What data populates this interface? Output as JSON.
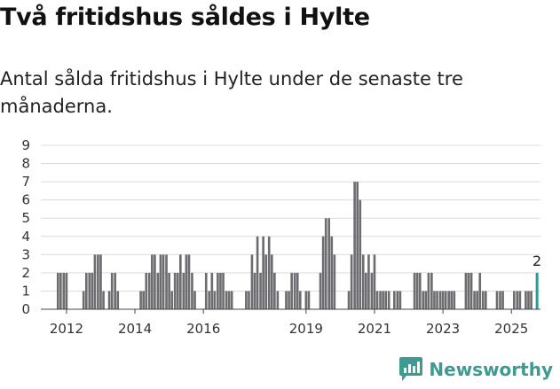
{
  "header": {
    "title": "Två fritidshus såldes i Hylte",
    "subtitle": "Antal sålda fritidshus i Hylte under de senaste tre månaderna."
  },
  "brand": {
    "name": "Newsworthy"
  },
  "colors": {
    "bar": "#6d6c70",
    "highlight": "#2e9a93",
    "grid": "#dcdcdc",
    "brand": "#3f9a92"
  },
  "chart_data": {
    "type": "bar",
    "ylim": [
      0,
      9
    ],
    "yticks": [
      0,
      1,
      2,
      3,
      4,
      5,
      6,
      7,
      8,
      9
    ],
    "xticks": [
      {
        "label": "2012",
        "at": 2012.0
      },
      {
        "label": "2014",
        "at": 2014.0
      },
      {
        "label": "2016",
        "at": 2016.0
      },
      {
        "label": "2019",
        "at": 2019.0
      },
      {
        "label": "2021",
        "at": 2021.0
      },
      {
        "label": "2023",
        "at": 2023.0
      },
      {
        "label": "2025",
        "at": 2025.0
      }
    ],
    "x_range": [
      2011.25,
      2025.85
    ],
    "grid": true,
    "series": [
      {
        "values": [
          {
            "x": 2011.75,
            "y": 2
          },
          {
            "x": 2011.83,
            "y": 2
          },
          {
            "x": 2011.92,
            "y": 2
          },
          {
            "x": 2012.0,
            "y": 2
          },
          {
            "x": 2012.5,
            "y": 1
          },
          {
            "x": 2012.58,
            "y": 2
          },
          {
            "x": 2012.67,
            "y": 2
          },
          {
            "x": 2012.75,
            "y": 2
          },
          {
            "x": 2012.83,
            "y": 3
          },
          {
            "x": 2012.92,
            "y": 3
          },
          {
            "x": 2013.0,
            "y": 3
          },
          {
            "x": 2013.08,
            "y": 1
          },
          {
            "x": 2013.25,
            "y": 1
          },
          {
            "x": 2013.33,
            "y": 2
          },
          {
            "x": 2013.42,
            "y": 2
          },
          {
            "x": 2013.5,
            "y": 1
          },
          {
            "x": 2014.17,
            "y": 1
          },
          {
            "x": 2014.25,
            "y": 1
          },
          {
            "x": 2014.33,
            "y": 2
          },
          {
            "x": 2014.42,
            "y": 2
          },
          {
            "x": 2014.5,
            "y": 3
          },
          {
            "x": 2014.58,
            "y": 3
          },
          {
            "x": 2014.67,
            "y": 2
          },
          {
            "x": 2014.75,
            "y": 3
          },
          {
            "x": 2014.83,
            "y": 3
          },
          {
            "x": 2014.92,
            "y": 3
          },
          {
            "x": 2015.0,
            "y": 2
          },
          {
            "x": 2015.08,
            "y": 1
          },
          {
            "x": 2015.17,
            "y": 2
          },
          {
            "x": 2015.25,
            "y": 2
          },
          {
            "x": 2015.33,
            "y": 3
          },
          {
            "x": 2015.42,
            "y": 2
          },
          {
            "x": 2015.5,
            "y": 3
          },
          {
            "x": 2015.58,
            "y": 3
          },
          {
            "x": 2015.67,
            "y": 2
          },
          {
            "x": 2015.75,
            "y": 1
          },
          {
            "x": 2016.08,
            "y": 2
          },
          {
            "x": 2016.17,
            "y": 1
          },
          {
            "x": 2016.25,
            "y": 2
          },
          {
            "x": 2016.33,
            "y": 1
          },
          {
            "x": 2016.42,
            "y": 2
          },
          {
            "x": 2016.5,
            "y": 2
          },
          {
            "x": 2016.58,
            "y": 2
          },
          {
            "x": 2016.67,
            "y": 1
          },
          {
            "x": 2016.75,
            "y": 1
          },
          {
            "x": 2016.83,
            "y": 1
          },
          {
            "x": 2017.25,
            "y": 1
          },
          {
            "x": 2017.33,
            "y": 1
          },
          {
            "x": 2017.42,
            "y": 3
          },
          {
            "x": 2017.5,
            "y": 2
          },
          {
            "x": 2017.58,
            "y": 4
          },
          {
            "x": 2017.67,
            "y": 2
          },
          {
            "x": 2017.75,
            "y": 4
          },
          {
            "x": 2017.83,
            "y": 3
          },
          {
            "x": 2017.92,
            "y": 4
          },
          {
            "x": 2018.0,
            "y": 3
          },
          {
            "x": 2018.08,
            "y": 2
          },
          {
            "x": 2018.17,
            "y": 1
          },
          {
            "x": 2018.42,
            "y": 1
          },
          {
            "x": 2018.5,
            "y": 1
          },
          {
            "x": 2018.58,
            "y": 2
          },
          {
            "x": 2018.67,
            "y": 2
          },
          {
            "x": 2018.75,
            "y": 2
          },
          {
            "x": 2018.83,
            "y": 1
          },
          {
            "x": 2019.0,
            "y": 1
          },
          {
            "x": 2019.08,
            "y": 1
          },
          {
            "x": 2019.42,
            "y": 2
          },
          {
            "x": 2019.5,
            "y": 4
          },
          {
            "x": 2019.58,
            "y": 5
          },
          {
            "x": 2019.67,
            "y": 5
          },
          {
            "x": 2019.75,
            "y": 4
          },
          {
            "x": 2019.83,
            "y": 3
          },
          {
            "x": 2020.25,
            "y": 1
          },
          {
            "x": 2020.33,
            "y": 3
          },
          {
            "x": 2020.42,
            "y": 7
          },
          {
            "x": 2020.5,
            "y": 7
          },
          {
            "x": 2020.58,
            "y": 6
          },
          {
            "x": 2020.67,
            "y": 3
          },
          {
            "x": 2020.75,
            "y": 2
          },
          {
            "x": 2020.83,
            "y": 3
          },
          {
            "x": 2020.92,
            "y": 2
          },
          {
            "x": 2021.0,
            "y": 3
          },
          {
            "x": 2021.08,
            "y": 1
          },
          {
            "x": 2021.17,
            "y": 1
          },
          {
            "x": 2021.25,
            "y": 1
          },
          {
            "x": 2021.33,
            "y": 1
          },
          {
            "x": 2021.42,
            "y": 1
          },
          {
            "x": 2021.58,
            "y": 1
          },
          {
            "x": 2021.67,
            "y": 1
          },
          {
            "x": 2021.75,
            "y": 1
          },
          {
            "x": 2022.17,
            "y": 2
          },
          {
            "x": 2022.25,
            "y": 2
          },
          {
            "x": 2022.33,
            "y": 2
          },
          {
            "x": 2022.42,
            "y": 1
          },
          {
            "x": 2022.5,
            "y": 1
          },
          {
            "x": 2022.58,
            "y": 2
          },
          {
            "x": 2022.67,
            "y": 2
          },
          {
            "x": 2022.75,
            "y": 1
          },
          {
            "x": 2022.83,
            "y": 1
          },
          {
            "x": 2022.92,
            "y": 1
          },
          {
            "x": 2023.0,
            "y": 1
          },
          {
            "x": 2023.08,
            "y": 1
          },
          {
            "x": 2023.17,
            "y": 1
          },
          {
            "x": 2023.25,
            "y": 1
          },
          {
            "x": 2023.33,
            "y": 1
          },
          {
            "x": 2023.67,
            "y": 2
          },
          {
            "x": 2023.75,
            "y": 2
          },
          {
            "x": 2023.83,
            "y": 2
          },
          {
            "x": 2023.92,
            "y": 1
          },
          {
            "x": 2024.0,
            "y": 1
          },
          {
            "x": 2024.08,
            "y": 2
          },
          {
            "x": 2024.17,
            "y": 1
          },
          {
            "x": 2024.25,
            "y": 1
          },
          {
            "x": 2024.58,
            "y": 1
          },
          {
            "x": 2024.67,
            "y": 1
          },
          {
            "x": 2024.75,
            "y": 1
          },
          {
            "x": 2025.08,
            "y": 1
          },
          {
            "x": 2025.17,
            "y": 1
          },
          {
            "x": 2025.25,
            "y": 1
          },
          {
            "x": 2025.42,
            "y": 1
          },
          {
            "x": 2025.5,
            "y": 1
          },
          {
            "x": 2025.58,
            "y": 1
          }
        ]
      }
    ],
    "highlight": {
      "x": 2025.75,
      "y": 2,
      "label": "2"
    }
  }
}
